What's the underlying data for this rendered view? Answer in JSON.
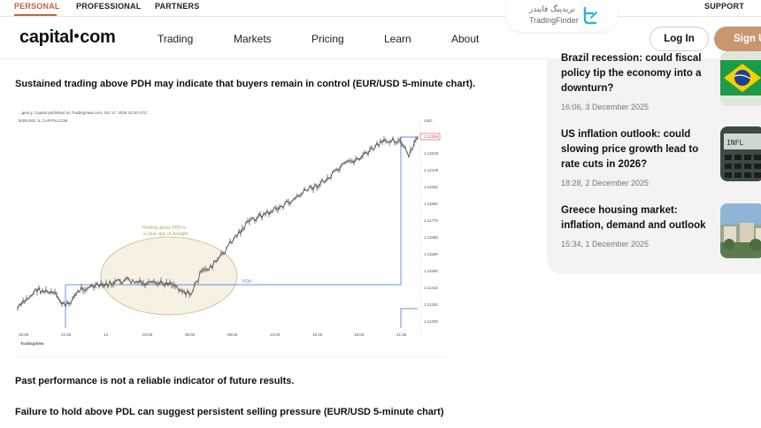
{
  "topbar": {
    "items": [
      "PERSONAL",
      "PROFESSIONAL",
      "PARTNERS"
    ],
    "support": "SUPPORT"
  },
  "watermark": {
    "text_fa": "تریدینگ فایندر",
    "text_en": "TradingFinder"
  },
  "header": {
    "logo_left": "capital",
    "logo_right": "com",
    "nav": [
      "Trading",
      "Markets",
      "Pricing",
      "Learn",
      "About"
    ],
    "login": "Log In",
    "signup": "Sign Up"
  },
  "article": {
    "caption_top": "Sustained trading above PDH may indicate that buyers remain in control (EUR/USD 5-minute chart).",
    "disclaimer": "Past performance is not a reliable indicator of future results.",
    "caption_bottom": "Failure to hold above PDL can suggest persistent selling pressure (EUR/USD 5-minute chart)"
  },
  "chart": {
    "publisher_line": "...gency. Capital published on TradingView.com, Oct 17, 2025 10:20 UTC",
    "symbol_line": "EURUSD, 5, CAPITALCOM",
    "currency": "USD",
    "annotation_line1": "Holding above PDH is",
    "annotation_line2": "a clear sign of strength",
    "pdh_label": "PDH",
    "last_price": "1.12285",
    "branding": "TradingView",
    "y_ticks": [
      "1.12230",
      "1.12100",
      "1.11930",
      "1.11860",
      "1.11770",
      "1.11680",
      "1.11590",
      "1.11500",
      "1.11410",
      "1.11320",
      "1.11230"
    ],
    "x_ticks": [
      "18:00",
      "21:05",
      "13",
      "03:00",
      "06:00",
      "09:00",
      "12:00",
      "15:00",
      "18:00",
      "21:05"
    ],
    "colors": {
      "line": "#555555",
      "pdh": "#6f8fe0",
      "ellipse_fill": "#f6f1e3",
      "ellipse_stroke": "#c9b98a",
      "price_tag": "#d34a4a"
    }
  },
  "sidebar": {
    "news": [
      {
        "title": "Brazil recession: could fiscal policy tip the economy into a downturn?",
        "date": "16:06, 3 December 2025",
        "thumb": "brazil-flag"
      },
      {
        "title": "US inflation outlook: could slowing price growth lead to rate cuts in 2026?",
        "date": "18:28, 2 December 2025",
        "thumb": "inflation-calculator"
      },
      {
        "title": "Greece housing market: inflation, demand and outlook",
        "date": "15:34, 1 December 2025",
        "thumb": "greece-street"
      }
    ]
  }
}
